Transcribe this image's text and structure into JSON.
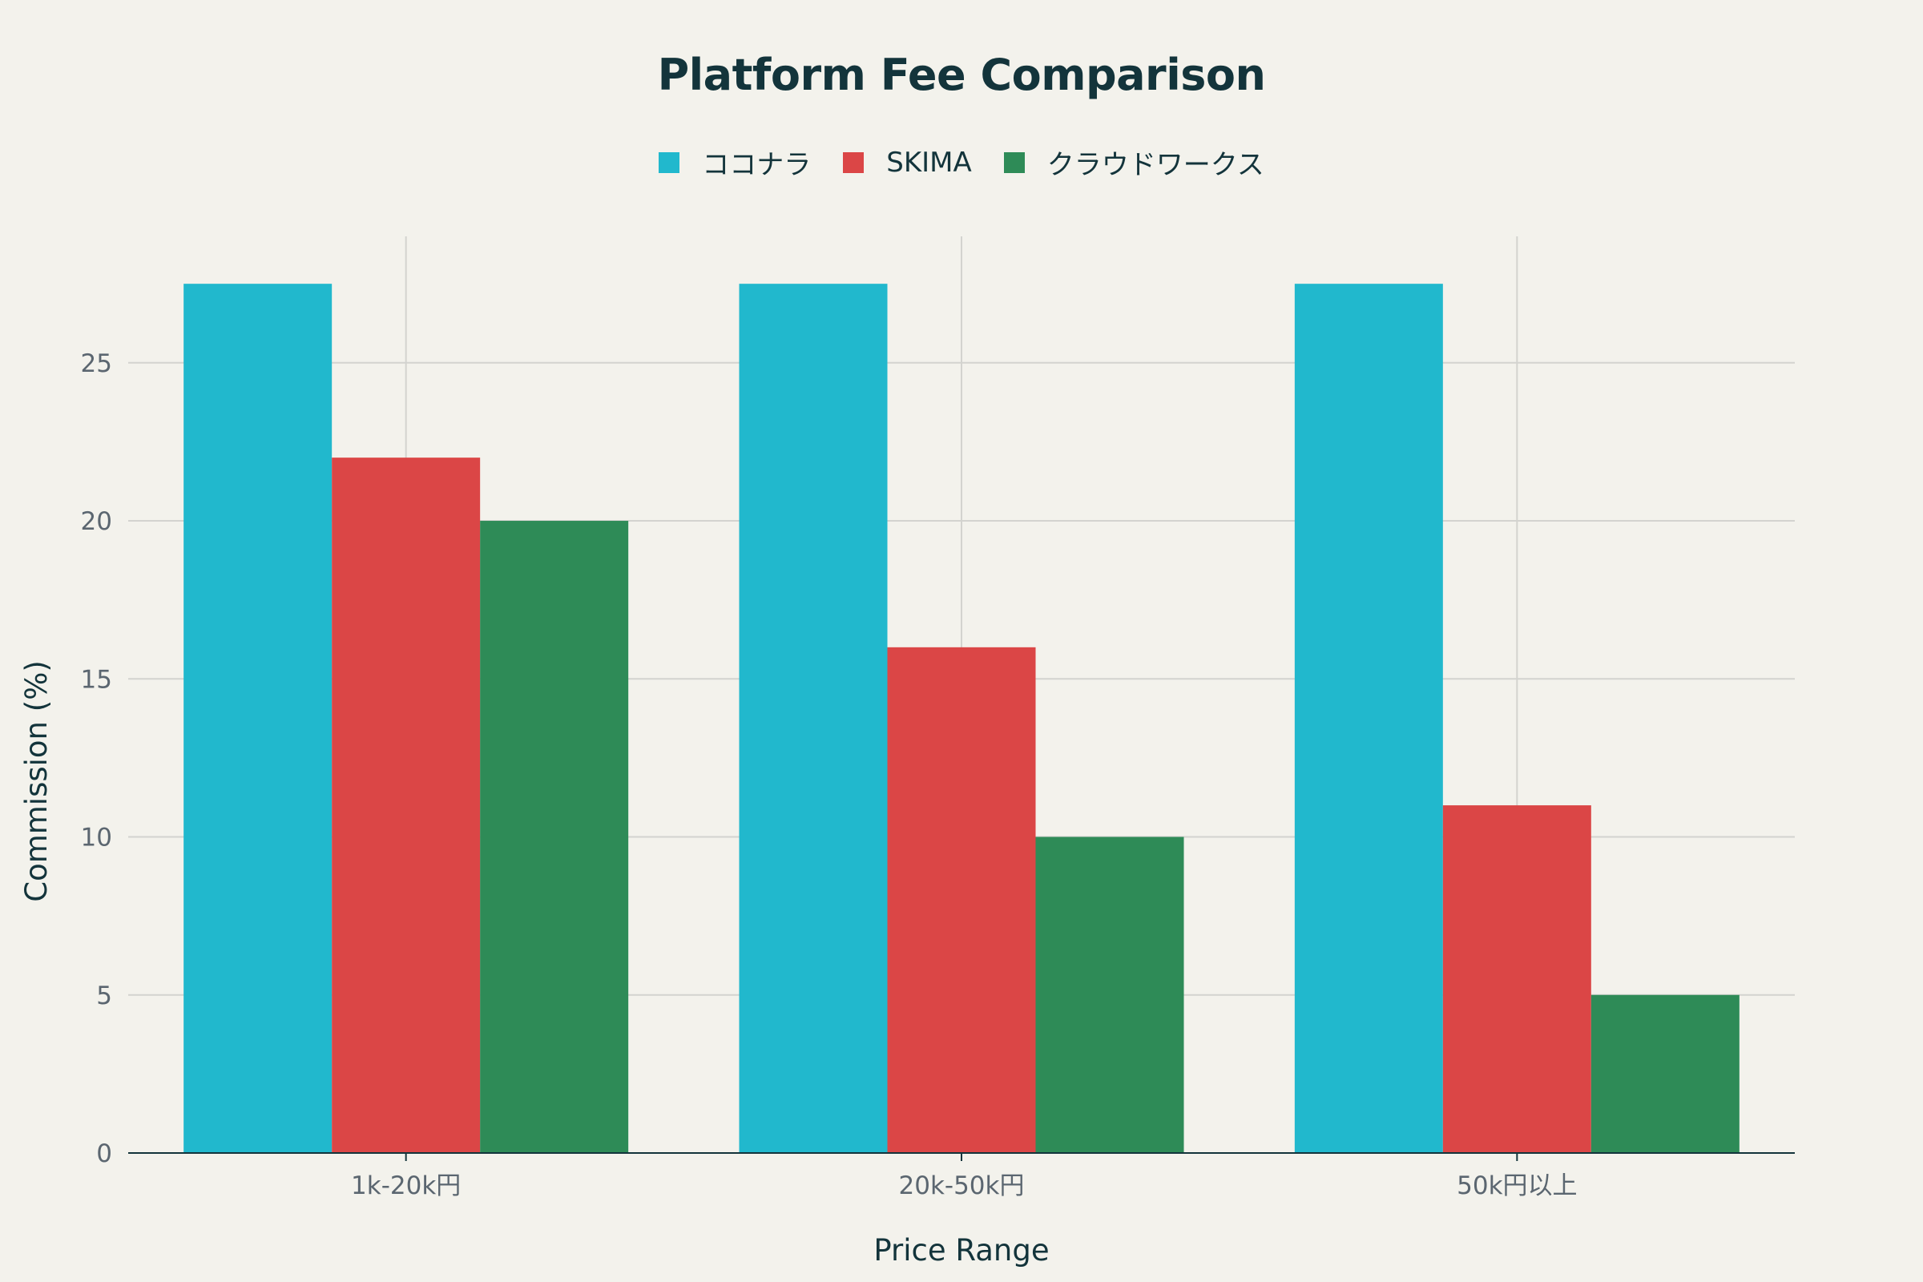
{
  "chart_data": {
    "type": "bar",
    "title": "Platform Fee Comparison",
    "xlabel": "Price Range",
    "ylabel": "Commission (%)",
    "categories": [
      "1k-20k円",
      "20k-50k円",
      "50k円以上"
    ],
    "series": [
      {
        "name": "ココナラ",
        "color": "#21b8cd",
        "values": [
          27.5,
          27.5,
          27.5
        ]
      },
      {
        "name": "SKIMA",
        "color": "#db4646",
        "values": [
          22,
          16,
          11
        ]
      },
      {
        "name": "クラウドワークス",
        "color": "#2e8b57",
        "values": [
          20,
          10,
          5
        ]
      }
    ],
    "yticks": [
      0,
      5,
      10,
      15,
      20,
      25
    ],
    "ylim": [
      0,
      29
    ],
    "grid": true,
    "legend_position": "top-center"
  }
}
